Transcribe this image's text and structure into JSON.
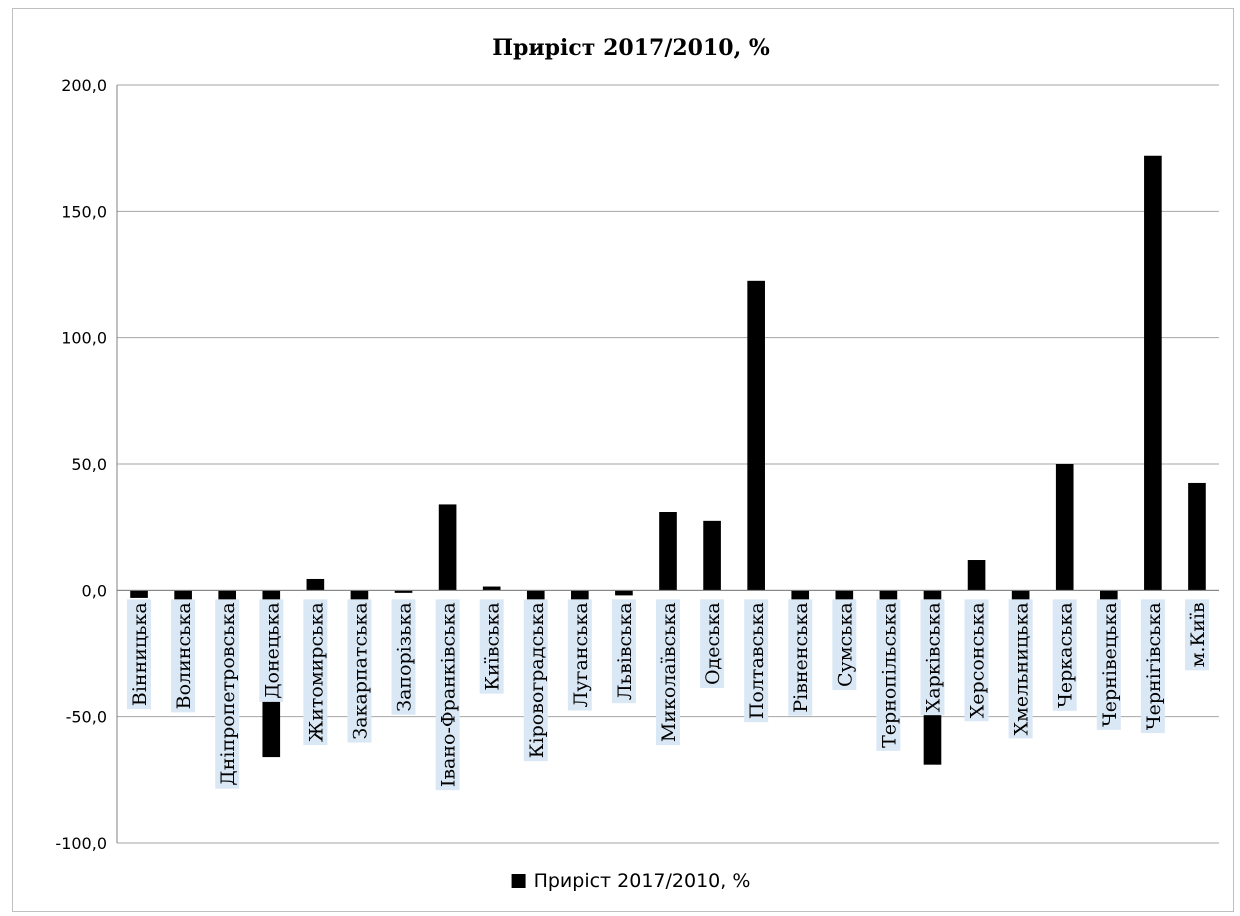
{
  "chart_data": {
    "type": "bar",
    "title": "Приріст 2017/2010, %",
    "xlabel": "",
    "ylabel": "",
    "ylim": [
      -100,
      200
    ],
    "yticks": [
      "-100,0",
      "-50,0",
      "0,0",
      "50,0",
      "100,0",
      "150,0",
      "200,0"
    ],
    "ytick_values": [
      -100,
      -50,
      0,
      50,
      100,
      150,
      200
    ],
    "grid": true,
    "legend": {
      "position": "bottom",
      "entries": [
        "Приріст 2017/2010, %"
      ]
    },
    "colors": {
      "bar": "#000000",
      "label_bg": "#dae8f6",
      "grid": "#a6a6a6"
    },
    "categories": [
      "Вінницька",
      "Волинська",
      "Дніпропетровська",
      "Донецька",
      "Житомирська",
      "Закарпатська",
      "Запорізька",
      "Івано-Франківська",
      "Київська",
      "Кіровоградська",
      "Луганська",
      "Львівська",
      "Миколаївська",
      "Одеська",
      "Полтавська",
      "Рівненська",
      "Сумська",
      "Тернопільська",
      "Харківська",
      "Херсонська",
      "Хмельницька",
      "Черкаська",
      "Чернівецька",
      "Чернігівська",
      "м.Київ"
    ],
    "series": [
      {
        "name": "Приріст 2017/2010, %",
        "values": [
          -3,
          -6,
          -6,
          -66,
          4.5,
          -6,
          -1,
          34,
          1.5,
          -6,
          -6,
          -2,
          31,
          27.5,
          122.5,
          -6,
          -6,
          -6,
          -69,
          12,
          -6,
          50,
          -6,
          172,
          42.5
        ]
      }
    ]
  }
}
